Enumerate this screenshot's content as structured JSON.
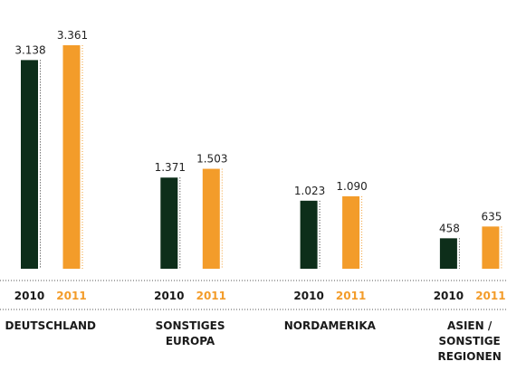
{
  "chart_data": {
    "type": "bar",
    "categories": [
      "DEUTSCHLAND",
      "SONSTIGES EUROPA",
      "NORDAMERIKA",
      "ASIEN / SONSTIGE REGIONEN"
    ],
    "series": [
      {
        "name": "2010",
        "color": "#0d2e1a",
        "values": [
          3138,
          1371,
          1023,
          458
        ],
        "value_labels": [
          "3.138",
          "1.371",
          "1.023",
          "458"
        ]
      },
      {
        "name": "2011",
        "color": "#f39c2a",
        "values": [
          3361,
          1503,
          1090,
          635
        ],
        "value_labels": [
          "3.361",
          "1.503",
          "1.090",
          "635"
        ]
      }
    ]
  }
}
